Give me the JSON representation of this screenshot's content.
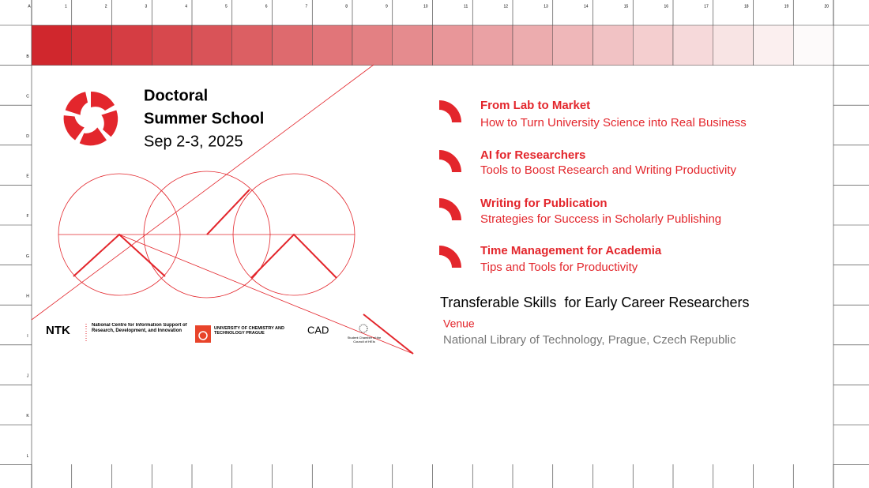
{
  "ruler": {
    "columns": [
      "1",
      "2",
      "3",
      "4",
      "5",
      "6",
      "7",
      "8",
      "9",
      "10",
      "11",
      "12",
      "13",
      "14",
      "15",
      "16",
      "17",
      "18",
      "19",
      "20"
    ],
    "rows": [
      "A",
      "B",
      "C",
      "D",
      "E",
      "F",
      "G",
      "H",
      "I",
      "J",
      "K",
      "L"
    ]
  },
  "event": {
    "title_line1": "Doctoral",
    "title_line2": "Summer School",
    "dates": "Sep 2-3, 2025"
  },
  "sessions": [
    {
      "title": "From Lab to Market",
      "subtitle": "How to Turn University Science into Real Business"
    },
    {
      "title": "AI for Researchers",
      "subtitle": "Tools to Boost Research and Writing Productivity"
    },
    {
      "title": "Writing for Publication",
      "subtitle": "Strategies for Success in Scholarly Publishing"
    },
    {
      "title": "Time Management for Academia",
      "subtitle": "Tips and Tools for Productivity"
    }
  ],
  "program": "Transferable Skills  for Early Career Researchers",
  "venue": {
    "label": "Venue",
    "place": "National Library of Technology, Prague, Czech Republic"
  },
  "partners": {
    "ntk": "NTK",
    "ntk_text": "National Centre for Information Support of Research, Development, and Innovation",
    "uct": "UNIVERSITY OF CHEMISTRY AND TECHNOLOGY PRAGUE",
    "cad": "CAD",
    "chamber": "Student Chamber of the Council of HEIs"
  }
}
